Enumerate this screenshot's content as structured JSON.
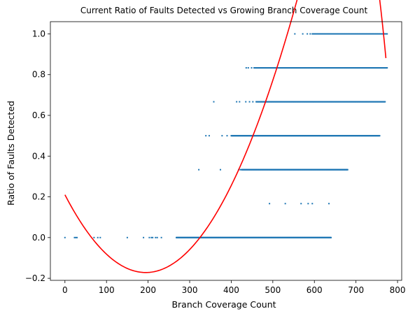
{
  "chart_data": {
    "type": "scatter",
    "title": "Current Ratio of Faults Detected vs Growing Branch Coverage Count",
    "xlabel": "Branch Coverage Count",
    "ylabel": "Ratio of Faults Detected",
    "xlim": [
      -35,
      810
    ],
    "ylim": [
      -0.21,
      1.06
    ],
    "xticks": [
      0,
      100,
      200,
      300,
      400,
      500,
      600,
      700,
      800
    ],
    "xtick_labels": [
      "0",
      "100",
      "200",
      "300",
      "400",
      "500",
      "600",
      "700",
      "800"
    ],
    "yticks": [
      -0.2,
      0.0,
      0.2,
      0.4,
      0.6,
      0.8,
      1.0
    ],
    "ytick_labels": [
      "−0.2",
      "0.0",
      "0.2",
      "0.4",
      "0.6",
      "0.8",
      "1.0"
    ],
    "grid": false,
    "legend": "none",
    "scatter_color": "#1f77b4",
    "fit_color": "#ff0000",
    "series": [
      {
        "kind": "points",
        "levels": [
          {
            "y": 0.0,
            "points": [
              0,
              23,
              26,
              29,
              70,
              79,
              85,
              150,
              189,
              203,
              208,
              211,
              218,
              222,
              232
            ],
            "dense_from": 268,
            "dense_to": 640
          },
          {
            "y": 0.1667,
            "points": [
              492,
              530,
              568,
              585,
              595,
              635
            ],
            "dense_from": null,
            "dense_to": null
          },
          {
            "y": 0.3333,
            "points": [
              322,
              374,
              418,
              422
            ],
            "dense_from": 425,
            "dense_to": 680
          },
          {
            "y": 0.5,
            "points": [
              339,
              347,
              378,
              390
            ],
            "dense_from": 400,
            "dense_to": 757
          },
          {
            "y": 0.6667,
            "points": [
              358,
              413,
              420,
              435,
              444,
              452
            ],
            "dense_from": 460,
            "dense_to": 770
          },
          {
            "y": 0.8333,
            "points": [
              436,
              441,
              449
            ],
            "dense_from": 455,
            "dense_to": 775
          },
          {
            "y": 1.0,
            "points": [
              553,
              572,
              583,
              590
            ],
            "dense_from": 595,
            "dense_to": 775
          }
        ]
      },
      {
        "kind": "fit-curve",
        "x_range": [
          0,
          775
        ],
        "cubic_coefficients": [
          0.21,
          -0.0039126,
          1.01e-05,
          0.0
        ]
      }
    ]
  }
}
